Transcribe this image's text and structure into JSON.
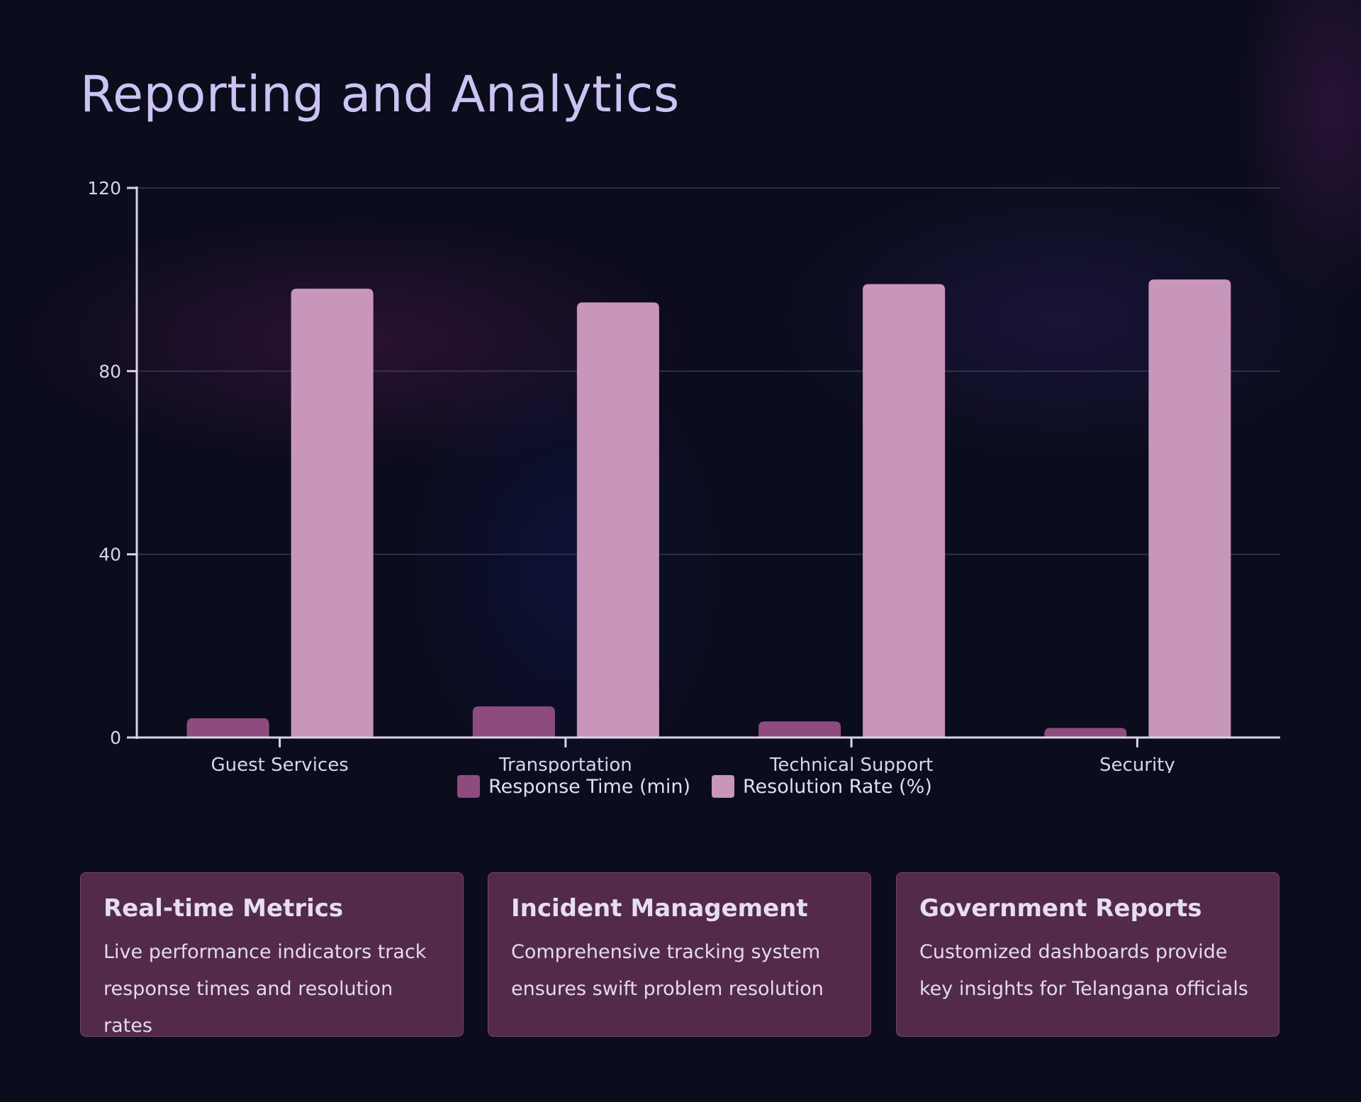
{
  "title": "Reporting and Analytics",
  "chart_data": {
    "type": "bar",
    "title": "",
    "xlabel": "",
    "ylabel": "",
    "categories": [
      "Guest Services",
      "Transportation",
      "Technical Support",
      "Security"
    ],
    "series": [
      {
        "name": "Response Time (min)",
        "values": [
          4.2,
          6.8,
          3.5,
          2.1
        ],
        "color": "#8e4c7e"
      },
      {
        "name": "Resolution Rate (%)",
        "values": [
          98,
          95,
          99,
          100
        ],
        "color": "#c996bb"
      }
    ],
    "ylim": [
      0,
      120
    ],
    "yticks": [
      0,
      40,
      80,
      120
    ],
    "grid": true,
    "legend": "bottom"
  },
  "cards": [
    {
      "title": "Real-time Metrics",
      "text": "Live performance indicators track response times and resolution rates"
    },
    {
      "title": "Incident Management",
      "text": "Comprehensive tracking system ensures swift problem resolution"
    },
    {
      "title": "Government Reports",
      "text": "Customized dashboards provide key insights for Telangana officials"
    }
  ]
}
